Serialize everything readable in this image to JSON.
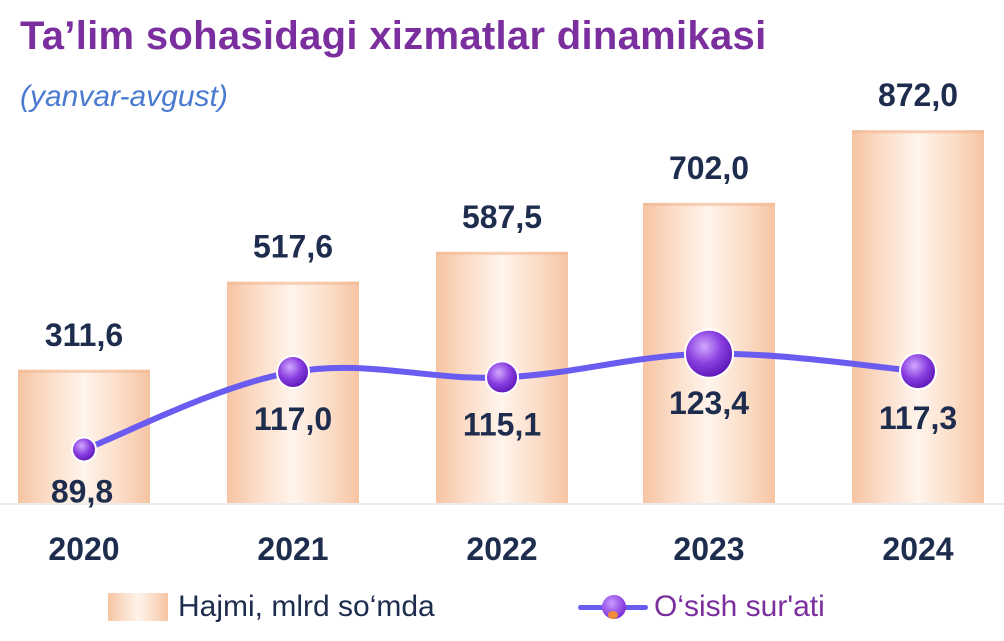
{
  "title": "Ta’lim sohasidagi xizmatlar dinamikasi",
  "subtitle": "(yanvar-avgust)",
  "chart_data": {
    "type": "bar",
    "categories": [
      "2020",
      "2021",
      "2022",
      "2023",
      "2024"
    ],
    "series": [
      {
        "name": "Hajmi, mlrd so‘mda",
        "type": "bar",
        "values": [
          311.6,
          517.6,
          587.5,
          702.0,
          872.0
        ],
        "labels": [
          "311,6",
          "517,6",
          "587,5",
          "702,0",
          "872,0"
        ]
      },
      {
        "name": "O‘sish sur'ati",
        "type": "line",
        "values": [
          89.8,
          117.0,
          115.1,
          123.4,
          117.3
        ],
        "labels": [
          "89,8",
          "117,0",
          "115,1",
          "123,4",
          "117,3"
        ]
      }
    ],
    "legend": "bottom",
    "grid": false
  },
  "colors": {
    "title": "#7B2F9E",
    "subtitle": "#4A7BD0",
    "bar_edge": "#F6C4A2",
    "bar_center": "#FFF3EA",
    "line": "#6A5CF0",
    "marker": "#8A3FE0",
    "label": "#1E2C4E"
  },
  "legend": {
    "bar_label": "Hajmi, mlrd so‘mda",
    "line_label": "O‘sish sur'ati"
  }
}
